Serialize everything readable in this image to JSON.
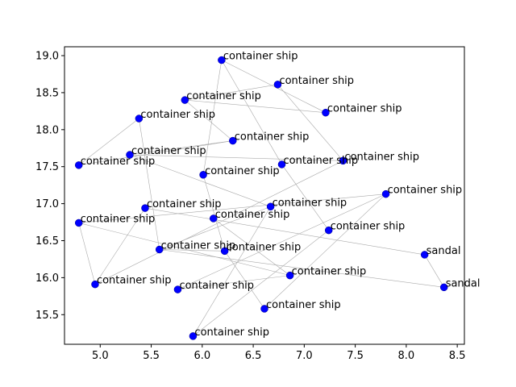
{
  "chart_data": {
    "type": "scatter",
    "title": "",
    "xlabel": "",
    "ylabel": "",
    "xlim": [
      4.65,
      8.57
    ],
    "ylim": [
      15.1,
      19.12
    ],
    "xticks": [
      "5.0",
      "5.5",
      "6.0",
      "6.5",
      "7.0",
      "7.5",
      "8.0",
      "8.5"
    ],
    "yticks": [
      "15.5",
      "16.0",
      "16.5",
      "17.0",
      "17.5",
      "18.0",
      "18.5",
      "19.0"
    ],
    "grid": false,
    "marker_color": "#0000ff",
    "edge_color": "#aaaaaa",
    "points": [
      {
        "x": 6.19,
        "y": 18.94,
        "label": "container ship"
      },
      {
        "x": 6.74,
        "y": 18.61,
        "label": "container ship"
      },
      {
        "x": 5.83,
        "y": 18.4,
        "label": "container ship"
      },
      {
        "x": 7.21,
        "y": 18.23,
        "label": "container ship"
      },
      {
        "x": 5.38,
        "y": 18.15,
        "label": "container ship"
      },
      {
        "x": 6.3,
        "y": 17.85,
        "label": "container ship"
      },
      {
        "x": 5.29,
        "y": 17.66,
        "label": "container ship"
      },
      {
        "x": 7.38,
        "y": 17.58,
        "label": "container ship"
      },
      {
        "x": 6.78,
        "y": 17.53,
        "label": "container ship"
      },
      {
        "x": 4.79,
        "y": 17.52,
        "label": "container ship"
      },
      {
        "x": 6.01,
        "y": 17.39,
        "label": "container ship"
      },
      {
        "x": 7.8,
        "y": 17.13,
        "label": "container ship"
      },
      {
        "x": 5.44,
        "y": 16.94,
        "label": "container ship"
      },
      {
        "x": 6.67,
        "y": 16.96,
        "label": "container ship"
      },
      {
        "x": 6.11,
        "y": 16.8,
        "label": "container ship"
      },
      {
        "x": 4.79,
        "y": 16.74,
        "label": "container ship"
      },
      {
        "x": 7.24,
        "y": 16.64,
        "label": "container ship"
      },
      {
        "x": 5.58,
        "y": 16.38,
        "label": "container ship"
      },
      {
        "x": 6.22,
        "y": 16.36,
        "label": "container ship"
      },
      {
        "x": 8.18,
        "y": 16.31,
        "label": "sandal"
      },
      {
        "x": 6.86,
        "y": 16.03,
        "label": "container ship"
      },
      {
        "x": 4.95,
        "y": 15.91,
        "label": "container ship"
      },
      {
        "x": 8.37,
        "y": 15.87,
        "label": "sandal"
      },
      {
        "x": 5.76,
        "y": 15.84,
        "label": "container ship"
      },
      {
        "x": 6.61,
        "y": 15.58,
        "label": "container ship"
      },
      {
        "x": 5.91,
        "y": 15.21,
        "label": "container ship"
      }
    ],
    "edges": [
      [
        0,
        8
      ],
      [
        0,
        3
      ],
      [
        0,
        10
      ],
      [
        1,
        2
      ],
      [
        1,
        7
      ],
      [
        2,
        5
      ],
      [
        2,
        3
      ],
      [
        4,
        9
      ],
      [
        4,
        17
      ],
      [
        6,
        7
      ],
      [
        6,
        5
      ],
      [
        6,
        13
      ],
      [
        9,
        5
      ],
      [
        7,
        21
      ],
      [
        8,
        16
      ],
      [
        10,
        18
      ],
      [
        11,
        15
      ],
      [
        11,
        23
      ],
      [
        11,
        24
      ],
      [
        12,
        19
      ],
      [
        12,
        21
      ],
      [
        13,
        17
      ],
      [
        13,
        25
      ],
      [
        14,
        20
      ],
      [
        15,
        20
      ],
      [
        15,
        21
      ],
      [
        16,
        25
      ],
      [
        17,
        18
      ],
      [
        17,
        22
      ],
      [
        18,
        24
      ],
      [
        19,
        22
      ],
      [
        20,
        23
      ]
    ]
  }
}
